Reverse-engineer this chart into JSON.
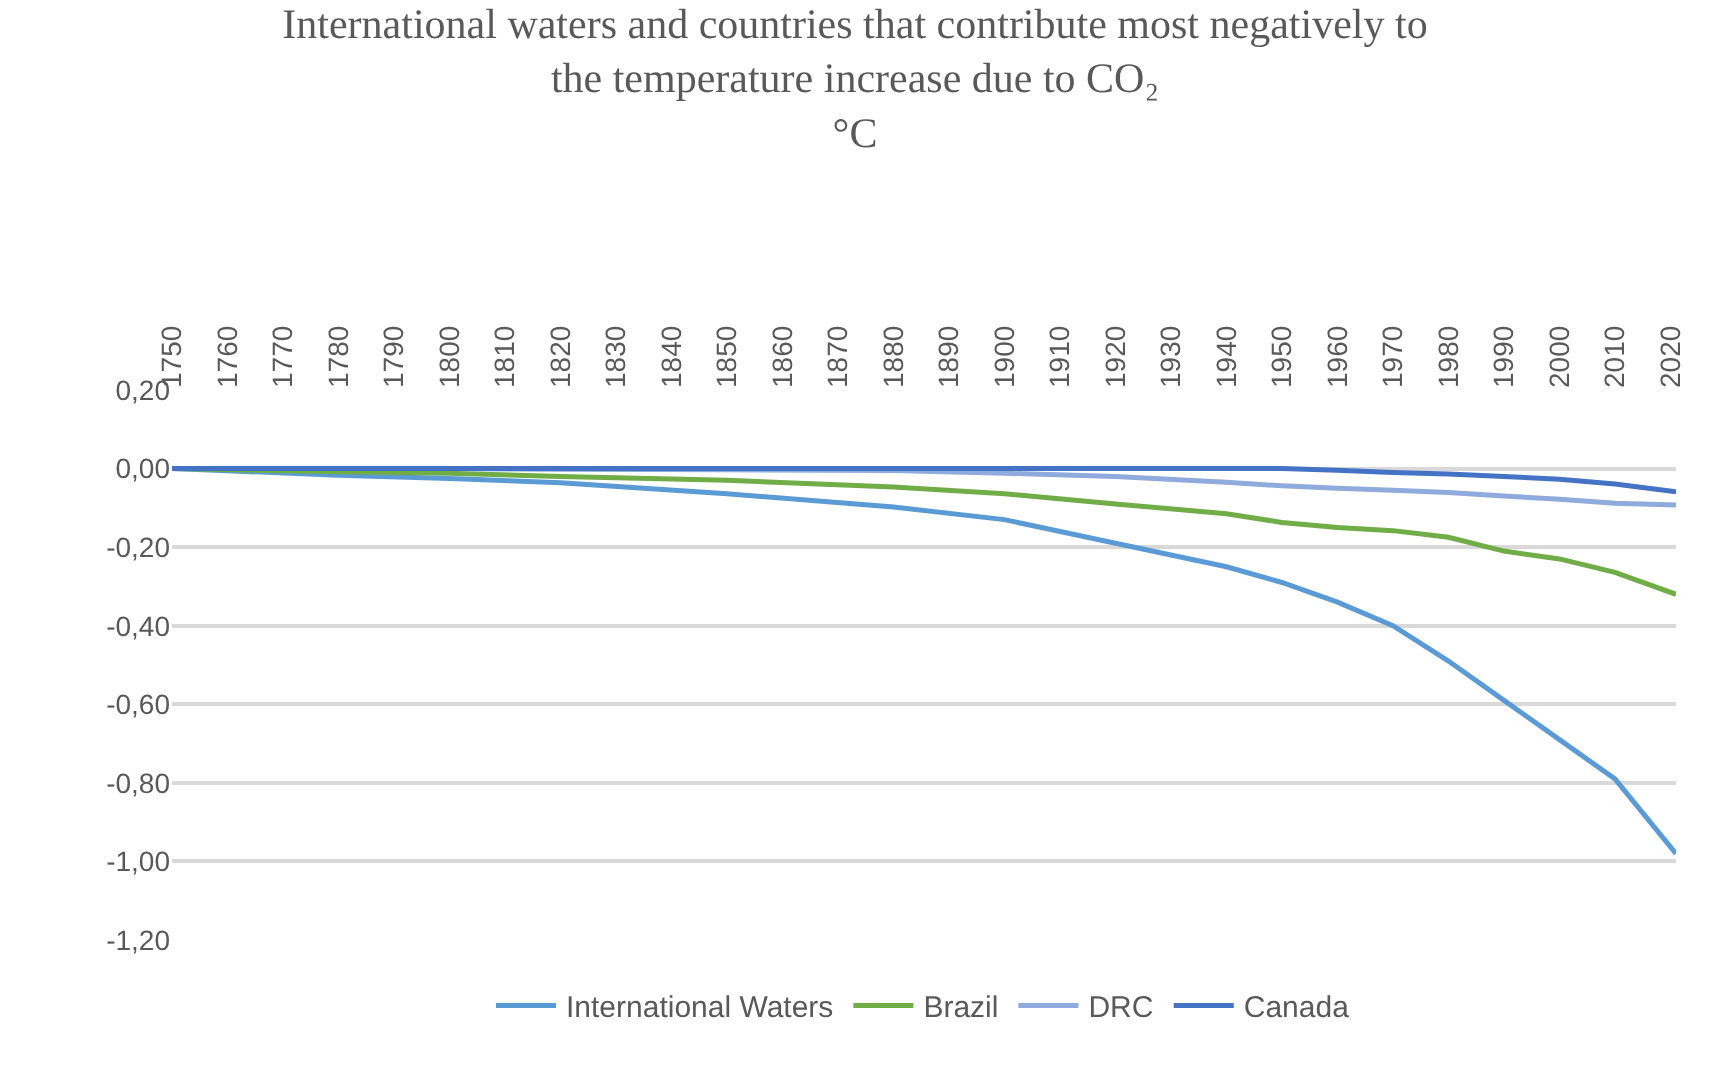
{
  "chart_data": {
    "type": "line",
    "title": "International waters and countries that contribute most negatively to the temperature increase due to CO₂",
    "subtitle": "°C",
    "x": [
      1750,
      1780,
      1800,
      1820,
      1850,
      1880,
      1900,
      1920,
      1940,
      1950,
      1960,
      1970,
      1980,
      1990,
      2000,
      2010,
      2021
    ],
    "series": [
      {
        "name": "International Waters",
        "color": "#5b9bd5",
        "values": [
          0,
          -0.017,
          -0.025,
          -0.036,
          -0.064,
          -0.098,
          -0.13,
          -0.19,
          -0.25,
          -0.29,
          -0.34,
          -0.4,
          -0.49,
          -0.59,
          -0.69,
          -0.79,
          -0.98
        ]
      },
      {
        "name": "Brazil",
        "color": "#70ad47",
        "values": [
          0,
          -0.008,
          -0.012,
          -0.02,
          -0.03,
          -0.047,
          -0.064,
          -0.09,
          -0.115,
          -0.137,
          -0.15,
          -0.158,
          -0.175,
          -0.21,
          -0.23,
          -0.264,
          -0.32
        ]
      },
      {
        "name": "DRC",
        "color": "#8faadc",
        "values": [
          0,
          0,
          0,
          -0.002,
          -0.003,
          -0.005,
          -0.012,
          -0.02,
          -0.035,
          -0.044,
          -0.05,
          -0.055,
          -0.061,
          -0.07,
          -0.078,
          -0.088,
          -0.093
        ]
      },
      {
        "name": "Canada",
        "color": "#4472c4",
        "values": [
          0,
          0,
          0,
          0,
          0,
          0,
          0,
          0,
          0,
          0,
          -0.004,
          -0.01,
          -0.014,
          -0.02,
          -0.027,
          -0.039,
          -0.059
        ]
      }
    ],
    "xlim": [
      1750,
      2021
    ],
    "xticks": [
      1750,
      1760,
      1770,
      1780,
      1790,
      1800,
      1810,
      1820,
      1830,
      1840,
      1850,
      1860,
      1870,
      1880,
      1890,
      1900,
      1910,
      1920,
      1930,
      1940,
      1950,
      1960,
      1970,
      1980,
      1990,
      2000,
      2010,
      2020
    ],
    "ylim": [
      -1.2,
      0.2
    ],
    "yticks": [
      {
        "value": 0.2,
        "label": "0,20"
      },
      {
        "value": 0,
        "label": "0,00"
      },
      {
        "value": -0.2,
        "label": "-0,20"
      },
      {
        "value": -0.4,
        "label": "-0,40"
      },
      {
        "value": -0.6,
        "label": "-0,60"
      },
      {
        "value": -0.8,
        "label": "-0,80"
      },
      {
        "value": -1.0,
        "label": "-1,00"
      },
      {
        "value": -1.2,
        "label": "-1,20"
      }
    ],
    "grid": "y",
    "legend": "bottom",
    "marker": "none",
    "line_style": "solid"
  }
}
